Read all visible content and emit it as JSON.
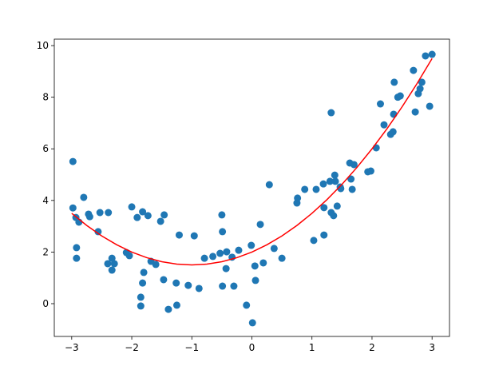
{
  "chart_data": {
    "type": "scatter",
    "xlim": [
      -3.29,
      3.29
    ],
    "ylim": [
      -1.27,
      10.25
    ],
    "xticks": [
      {
        "value": -3,
        "label": "−3"
      },
      {
        "value": -2,
        "label": "−2"
      },
      {
        "value": -1,
        "label": "−1"
      },
      0,
      1,
      2,
      3
    ],
    "yticks": [
      0,
      2,
      4,
      6,
      8,
      10
    ],
    "series": [
      {
        "type": "scatter",
        "color": "#1f77b4",
        "x": [
          -2.98,
          -2.98,
          -2.93,
          -2.88,
          -2.92,
          -2.92,
          -2.8,
          -2.72,
          -2.7,
          -2.56,
          -2.53,
          -2.39,
          -2.4,
          -2.33,
          -2.33,
          -2.29,
          -2.09,
          -2.04,
          -2.0,
          -1.91,
          -1.82,
          -1.73,
          -1.85,
          -1.85,
          -1.82,
          -1.8,
          -1.68,
          -1.6,
          -1.52,
          -1.46,
          -1.47,
          -1.39,
          -1.26,
          -1.25,
          -1.21,
          -1.06,
          -0.96,
          -0.88,
          -0.79,
          -0.65,
          -0.53,
          -0.5,
          -0.49,
          -0.49,
          -0.43,
          -0.42,
          -0.33,
          -0.3,
          -0.22,
          -0.09,
          -0.01,
          0.01,
          0.05,
          0.06,
          0.14,
          0.19,
          0.29,
          0.37,
          0.5,
          0.75,
          0.76,
          0.88,
          1.03,
          1.07,
          1.2,
          1.2,
          1.19,
          1.3,
          1.32,
          1.32,
          1.36,
          1.38,
          1.39,
          1.42,
          1.47,
          1.48,
          1.63,
          1.67,
          1.65,
          1.7,
          1.93,
          1.98,
          2.07,
          2.14,
          2.2,
          2.31,
          2.35,
          2.36,
          2.37,
          2.43,
          2.47,
          2.69,
          2.72,
          2.77,
          2.8,
          2.83,
          2.89,
          2.96,
          3.0
        ],
        "values": [
          5.51,
          3.71,
          3.34,
          3.16,
          2.17,
          1.76,
          4.12,
          3.47,
          3.37,
          2.79,
          3.53,
          3.53,
          1.55,
          1.76,
          1.3,
          1.55,
          1.98,
          1.86,
          3.75,
          3.34,
          3.56,
          3.41,
          0.25,
          -0.09,
          0.8,
          1.21,
          1.64,
          1.52,
          3.19,
          3.44,
          0.93,
          -0.22,
          0.8,
          -0.06,
          2.66,
          0.71,
          2.63,
          0.59,
          1.76,
          1.83,
          1.95,
          3.44,
          2.79,
          0.68,
          1.36,
          2.01,
          1.8,
          0.68,
          2.07,
          -0.06,
          2.26,
          -0.74,
          1.46,
          0.9,
          3.07,
          1.58,
          4.61,
          2.14,
          1.76,
          3.9,
          4.09,
          4.43,
          2.45,
          4.43,
          2.66,
          3.72,
          4.64,
          4.74,
          7.4,
          3.53,
          3.41,
          4.98,
          4.74,
          3.78,
          4.52,
          4.46,
          5.45,
          4.43,
          4.83,
          5.39,
          5.11,
          5.14,
          6.04,
          7.74,
          6.93,
          6.56,
          6.66,
          7.34,
          8.58,
          8.0,
          8.05,
          9.04,
          7.43,
          8.14,
          8.33,
          8.58,
          9.6,
          7.65,
          9.66
        ]
      },
      {
        "type": "line",
        "color": "#ff0000",
        "x": [
          -3,
          -2.75,
          -2.5,
          -2.25,
          -2,
          -1.75,
          -1.5,
          -1.25,
          -1,
          -0.75,
          -0.5,
          -0.25,
          0,
          0.25,
          0.5,
          0.75,
          1,
          1.25,
          1.5,
          1.75,
          2,
          2.25,
          2.5,
          2.75,
          3
        ],
        "values": [
          3.5,
          3.03125,
          2.625,
          2.28125,
          2,
          1.78125,
          1.625,
          1.53125,
          1.5,
          1.53125,
          1.625,
          1.78125,
          2,
          2.28125,
          2.625,
          3.03125,
          3.5,
          4.03125,
          4.625,
          5.28125,
          6,
          6.78125,
          7.625,
          8.53125,
          9.5
        ]
      }
    ]
  }
}
